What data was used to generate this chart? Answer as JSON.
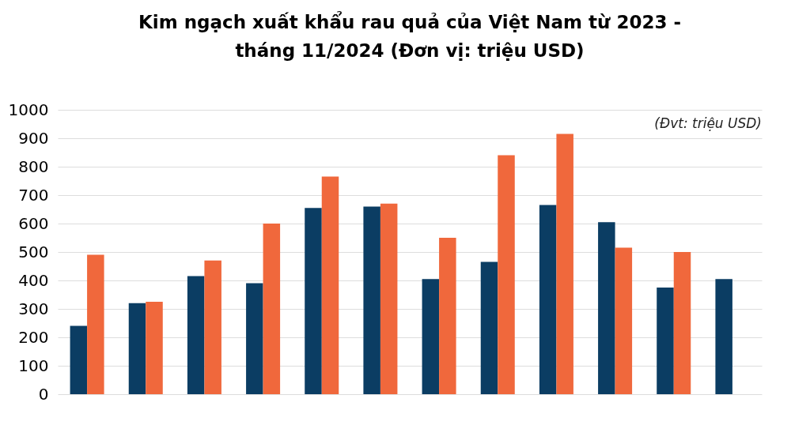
{
  "chart_data": {
    "type": "bar",
    "title": "Kim ngạch xuất khẩu rau quả của Việt Nam từ 2023 - tháng 11/2024 (Đơn vị: triệu USD)",
    "annotations": [
      "(Đvt: triệu USD)"
    ],
    "categories": [
      null,
      null,
      null,
      null,
      null,
      null,
      null,
      null,
      null,
      null,
      null,
      null
    ],
    "series": [
      {
        "color": "#0b3d63",
        "values": [
          240,
          320,
          415,
          390,
          655,
          660,
          405,
          465,
          665,
          605,
          375,
          405
        ]
      },
      {
        "color": "#f0683c",
        "values": [
          490,
          325,
          470,
          600,
          765,
          670,
          550,
          840,
          915,
          515,
          500,
          null
        ]
      }
    ],
    "ylim": [
      0,
      1000
    ],
    "yticks": [
      0,
      100,
      200,
      300,
      400,
      500,
      600,
      700,
      800,
      900,
      1000
    ],
    "grid": "y",
    "tick_labels": "y"
  }
}
